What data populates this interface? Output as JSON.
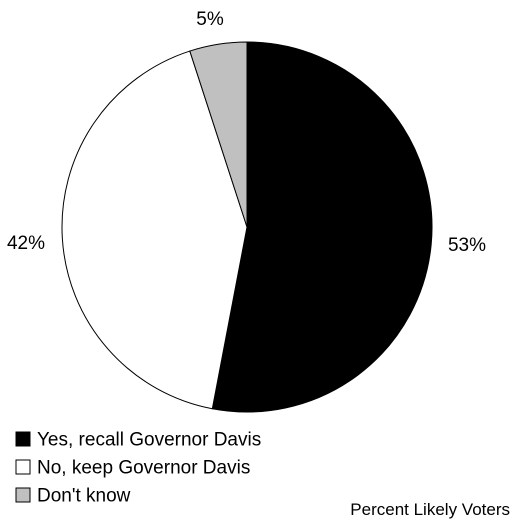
{
  "chart_data": {
    "type": "pie",
    "title": "",
    "categories": [
      "Yes, recall Governor Davis",
      "No, keep Governor Davis",
      "Don't know"
    ],
    "values": [
      53,
      42,
      5
    ],
    "value_labels": [
      "53%",
      "42%",
      "5%"
    ],
    "colors": [
      "#000000",
      "#ffffff",
      "#c0c0c0"
    ],
    "start_angle_deg": 0,
    "direction": "clockwise",
    "legend_position": "bottom-left",
    "annotation": "Percent Likely Voters"
  }
}
